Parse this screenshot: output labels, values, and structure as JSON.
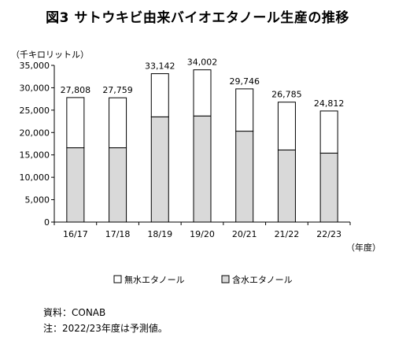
{
  "chart_data": {
    "type": "bar",
    "stacked": true,
    "title": "図3 サトウキビ由来バイオエタノール生産の推移",
    "ylabel": "（千キロリットル）",
    "xlabel": "（年度）",
    "categories": [
      "16/17",
      "17/18",
      "18/19",
      "19/20",
      "20/21",
      "21/22",
      "22/23"
    ],
    "series": [
      {
        "name": "含水エタノール",
        "color": "#d9d9d9",
        "values": [
          16600,
          16600,
          23500,
          23700,
          20300,
          16100,
          15400
        ]
      },
      {
        "name": "無水エタノール",
        "color": "#ffffff",
        "values": [
          11208,
          11159,
          9642,
          10302,
          9446,
          10685,
          9412
        ]
      }
    ],
    "totals": [
      27808,
      27759,
      33142,
      34002,
      29746,
      26785,
      24812
    ],
    "total_labels": [
      "27,808",
      "27,759",
      "33,142",
      "34,002",
      "29,746",
      "26,785",
      "24,812"
    ],
    "yticks": [
      0,
      5000,
      10000,
      15000,
      20000,
      25000,
      30000,
      35000
    ],
    "ytick_labels": [
      "0",
      "5,000",
      "10,000",
      "15,000",
      "20,000",
      "25,000",
      "30,000",
      "35,000"
    ],
    "ylim": [
      0,
      35000
    ],
    "grid": false,
    "legend_position": "bottom",
    "legend": [
      "無水エタノール",
      "含水エタノール"
    ]
  },
  "footer": {
    "source": "資料：CONAB",
    "note": "注：2022/23年度は予測値。"
  }
}
